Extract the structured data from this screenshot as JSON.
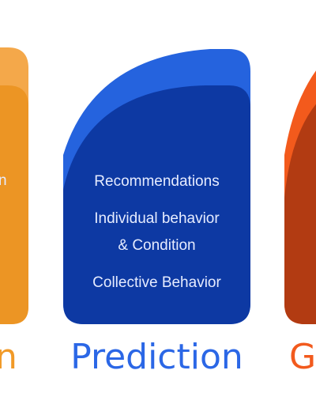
{
  "left_card": {
    "partial_text": "n",
    "title_partial": "n",
    "colors": {
      "back": "#f4a84a",
      "front": "#ec9524",
      "title": "#f19a28"
    }
  },
  "center_card": {
    "items": [
      "Recommendations",
      "Individual behavior",
      "& Condition",
      "Collective Behavior"
    ],
    "title": "Prediction",
    "colors": {
      "back": "#2563de",
      "front": "#0d39a3",
      "title": "#2b67e6",
      "text": "#e6ecff"
    }
  },
  "right_card": {
    "title_partial": "G",
    "colors": {
      "back": "#f35a1c",
      "front": "#b23b12",
      "title": "#f25a1d"
    }
  }
}
